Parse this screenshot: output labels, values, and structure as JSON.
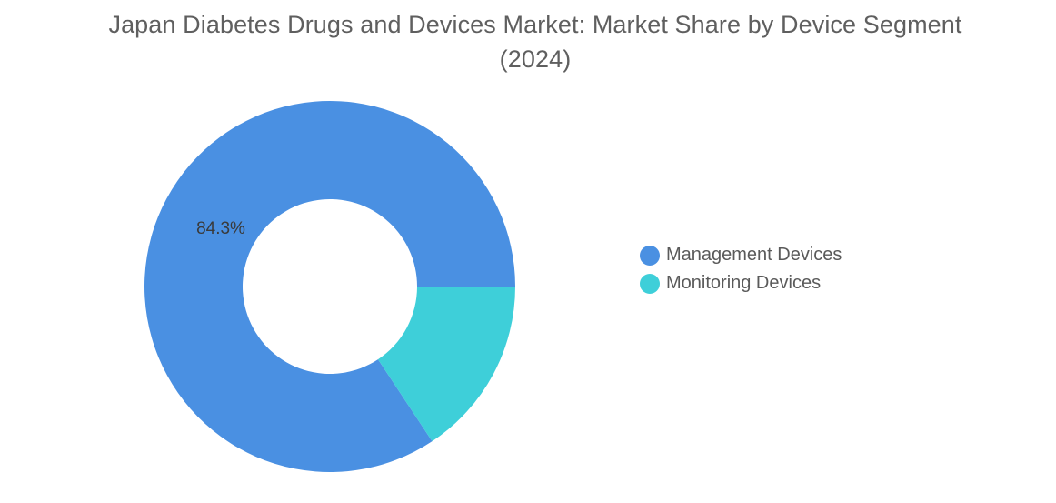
{
  "title": {
    "line1": "Japan Diabetes Drugs and Devices Market: Market Share by Device Segment",
    "line2": "(2024)"
  },
  "chart_data": {
    "type": "pie",
    "style": "donut",
    "title": "Japan Diabetes Drugs and Devices Market: Market Share by Device Segment (2024)",
    "legend_position": "right",
    "categories": [
      "Management Devices",
      "Monitoring Devices"
    ],
    "values": [
      84.3,
      15.7
    ],
    "colors": [
      "#4a90e2",
      "#3ecfd9"
    ],
    "data_labels": [
      "84.3%",
      ""
    ]
  },
  "legend": {
    "items": [
      {
        "label": "Management Devices",
        "color": "#4a90e2"
      },
      {
        "label": "Monitoring Devices",
        "color": "#3ecfd9"
      }
    ]
  }
}
